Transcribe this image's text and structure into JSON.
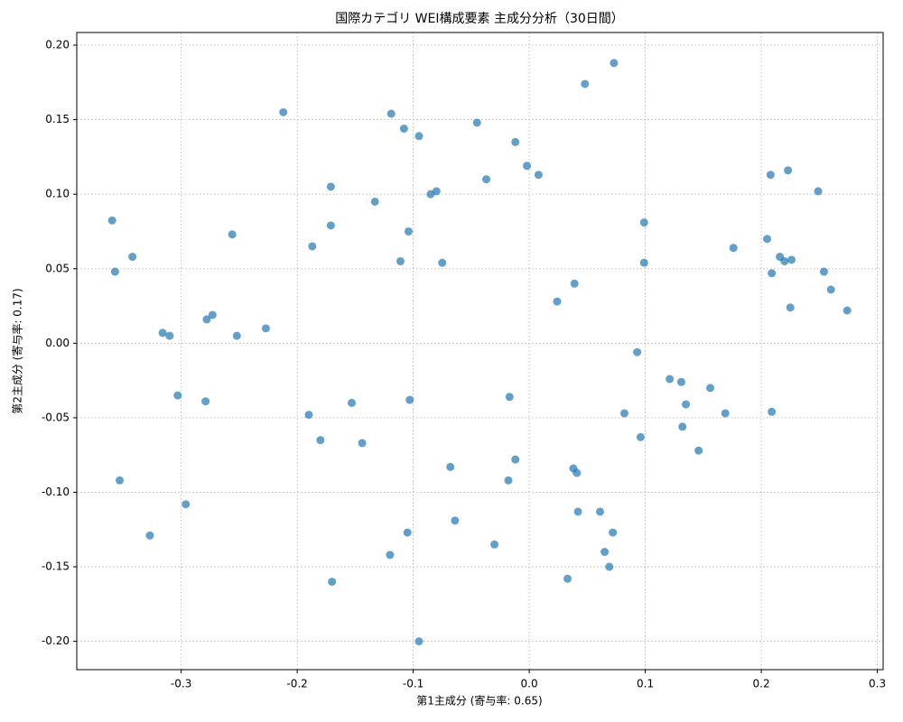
{
  "chart_data": {
    "type": "scatter",
    "title": "国際カテゴリ WEI構成要素 主成分分析（30日間）",
    "x_label": "第1主成分 (寄与率: 0.65)",
    "y_label": "第2主成分 (寄与率: 0.17)",
    "color": "#1f77b4",
    "grid": true,
    "xlim": [
      -0.39,
      0.305
    ],
    "ylim": [
      -0.219,
      0.2085
    ],
    "xticks": [
      -0.3,
      -0.2,
      -0.1,
      {
        "value": 0,
        "label": "0.0"
      },
      0.1,
      0.2,
      0.3
    ],
    "yticks": [
      {
        "value": -0.2,
        "label": "-0.20"
      },
      -0.15,
      {
        "value": -0.1,
        "label": "-0.10"
      },
      -0.05,
      {
        "value": 0,
        "label": "0.00"
      },
      0.05,
      {
        "value": 0.1,
        "label": "0.10"
      },
      0.15,
      {
        "value": 0.2,
        "label": "0.20"
      }
    ],
    "x": [
      -0.3595,
      -0.357,
      -0.342,
      -0.353,
      -0.327,
      -0.316,
      -0.31,
      -0.303,
      -0.296,
      -0.279,
      -0.278,
      -0.273,
      -0.256,
      -0.252,
      -0.227,
      -0.212,
      -0.19,
      -0.187,
      -0.18,
      -0.171,
      -0.171,
      -0.17,
      -0.153,
      -0.144,
      -0.133,
      -0.12,
      -0.119,
      -0.111,
      -0.108,
      -0.105,
      -0.104,
      -0.103,
      -0.095,
      -0.095,
      -0.085,
      -0.08,
      -0.075,
      -0.068,
      -0.064,
      -0.045,
      -0.037,
      -0.03,
      -0.018,
      -0.017,
      -0.012,
      -0.012,
      -0.002,
      0.008,
      0.024,
      0.033,
      0.038,
      0.039,
      0.041,
      0.042,
      0.048,
      0.061,
      0.065,
      0.069,
      0.072,
      0.073,
      0.082,
      0.093,
      0.096,
      0.099,
      0.099,
      0.121,
      0.131,
      0.132,
      0.135,
      0.146,
      0.156,
      0.169,
      0.176,
      0.205,
      0.208,
      0.209,
      0.209,
      0.216,
      0.22,
      0.223,
      0.226,
      0.225,
      0.249,
      0.254,
      0.26,
      0.274
    ],
    "values": [
      0.0824,
      0.048,
      0.058,
      -0.092,
      -0.129,
      0.007,
      0.005,
      -0.035,
      -0.108,
      -0.039,
      0.016,
      0.019,
      0.073,
      0.005,
      0.01,
      0.155,
      -0.048,
      0.065,
      -0.065,
      0.079,
      0.105,
      -0.16,
      -0.04,
      -0.067,
      0.095,
      -0.142,
      0.154,
      0.055,
      0.144,
      -0.127,
      0.075,
      -0.038,
      0.139,
      -0.2,
      0.1,
      0.102,
      0.054,
      -0.083,
      -0.119,
      0.148,
      0.11,
      -0.135,
      -0.092,
      -0.036,
      -0.078,
      0.135,
      0.119,
      0.113,
      0.028,
      -0.158,
      -0.084,
      0.04,
      -0.087,
      -0.113,
      0.174,
      -0.113,
      -0.14,
      -0.15,
      -0.127,
      0.188,
      -0.047,
      -0.006,
      -0.063,
      0.081,
      0.054,
      -0.024,
      -0.026,
      -0.056,
      -0.041,
      -0.072,
      -0.03,
      -0.047,
      0.064,
      0.07,
      0.113,
      -0.046,
      0.047,
      0.058,
      0.055,
      0.116,
      0.056,
      0.024,
      0.102,
      0.048,
      0.036,
      0.022
    ]
  }
}
